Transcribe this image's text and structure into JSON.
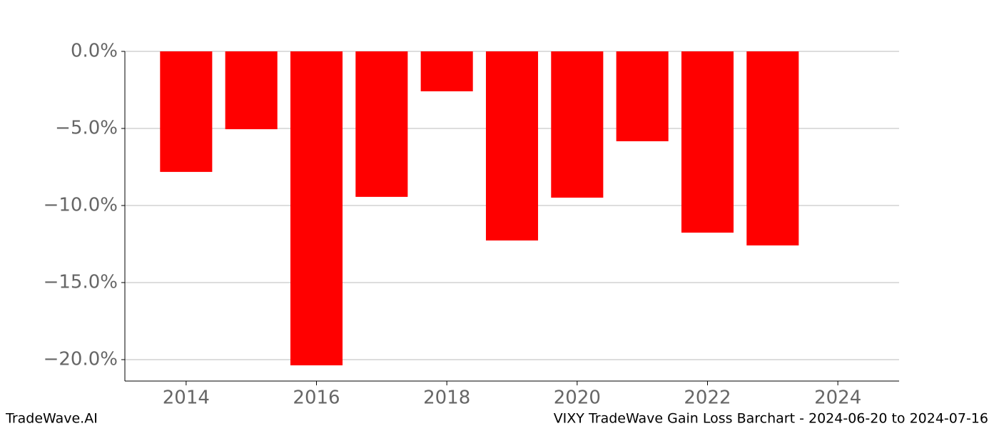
{
  "chart_data": {
    "type": "bar",
    "x": [
      2014,
      2015,
      2016,
      2017,
      2018,
      2019,
      2020,
      2021,
      2022,
      2023
    ],
    "values": [
      -7.82,
      -5.05,
      -20.37,
      -9.44,
      -2.59,
      -12.27,
      -9.49,
      -5.83,
      -11.76,
      -12.59
    ],
    "color": "#ff0000",
    "xlim": [
      2013.06,
      2024.94
    ],
    "xticks": [
      2014,
      2016,
      2018,
      2020,
      2022,
      2024
    ],
    "ylim": [
      -21.39,
      0
    ],
    "yticks": [
      {
        "value": 0,
        "label": "0.0%"
      },
      {
        "value": -5,
        "label": "−5.0%"
      },
      {
        "value": -10,
        "label": "−10.0%"
      },
      {
        "value": -15,
        "label": "−15.0%"
      },
      {
        "value": -20,
        "label": "−20.0%"
      }
    ],
    "grid": true,
    "footer_left": "TradeWave.AI",
    "footer_right": "VIXY TradeWave Gain Loss Barchart - 2024-06-20 to 2024-07-16"
  }
}
